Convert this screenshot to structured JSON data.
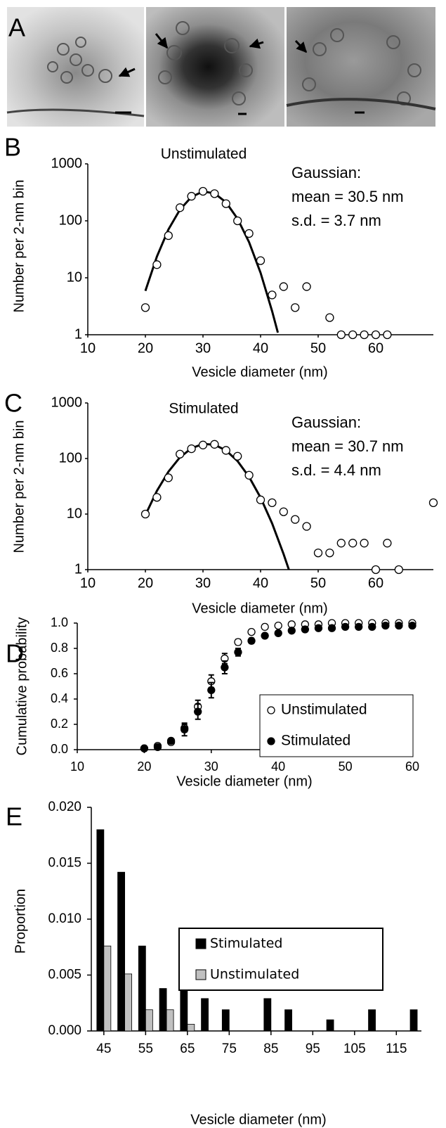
{
  "panels": [
    "A",
    "B",
    "C",
    "D",
    "E"
  ],
  "chart_data": [
    {
      "type": "scatter",
      "title": "Unstimulated",
      "annotations": [
        "Gaussian:",
        "mean = 30.5 nm",
        "s.d. = 3.7 nm"
      ],
      "x_label": "Vesicle diameter (nm)",
      "y_label": "Number per 2-nm bin",
      "yscale": "log",
      "xlim": [
        10,
        70
      ],
      "ylim": [
        1,
        1000
      ],
      "xticks": [
        10,
        20,
        30,
        40,
        50,
        60
      ],
      "yticks": [
        1,
        10,
        100,
        1000
      ],
      "series": [
        {
          "marker": "open-circle",
          "color": "#000000",
          "x": [
            20,
            22,
            24,
            26,
            28,
            30,
            32,
            34,
            36,
            38,
            40,
            42,
            44,
            46,
            48,
            52,
            54,
            56,
            58,
            60,
            62
          ],
          "values": [
            3,
            17,
            55,
            170,
            270,
            330,
            300,
            200,
            100,
            60,
            20,
            5,
            7,
            3,
            7,
            2,
            1,
            1,
            1,
            1,
            1
          ]
        },
        {
          "marker": "line",
          "color": "#000000",
          "x": [
            20,
            22,
            24,
            26,
            28,
            30,
            32,
            34,
            36,
            38,
            40,
            42,
            43
          ],
          "values": [
            5.9,
            23.6,
            70.5,
            157,
            263,
            327,
            304,
            211,
            109,
            42.3,
            12.2,
            2.6,
            1.09
          ]
        }
      ]
    },
    {
      "type": "scatter",
      "title": "Stimulated",
      "annotations": [
        "Gaussian:",
        "mean = 30.7 nm",
        "s.d. = 4.4 nm"
      ],
      "x_label": "Vesicle diameter (nm)",
      "y_label": "Number per 2-nm bin",
      "yscale": "log",
      "xlim": [
        10,
        70
      ],
      "ylim": [
        1,
        1000
      ],
      "xticks": [
        10,
        20,
        30,
        40,
        50,
        60
      ],
      "yticks": [
        1,
        10,
        100,
        1000
      ],
      "series": [
        {
          "marker": "open-circle",
          "color": "#000000",
          "x": [
            20,
            22,
            24,
            26,
            28,
            30,
            32,
            34,
            36,
            38,
            40,
            42,
            44,
            46,
            48,
            50,
            52,
            54,
            56,
            58,
            60,
            62,
            64,
            70
          ],
          "values": [
            10,
            20,
            45,
            120,
            150,
            175,
            180,
            140,
            110,
            50,
            18,
            16,
            11,
            8,
            6,
            2,
            2,
            3,
            3,
            3,
            1,
            3,
            1,
            16
          ]
        },
        {
          "marker": "line",
          "color": "#000000",
          "x": [
            20,
            22,
            24,
            26,
            28,
            30,
            32,
            34,
            36,
            38,
            40,
            42,
            44,
            45
          ],
          "values": [
            9.6,
            26.2,
            58,
            105,
            153,
            183,
            177,
            140,
            90,
            46.8,
            19.8,
            6.8,
            1.9,
            0.94
          ]
        }
      ]
    },
    {
      "type": "scatter",
      "x_label": "Vesicle diameter (nm)",
      "y_label": "Cumulative probability",
      "xlim": [
        10,
        60
      ],
      "ylim": [
        0,
        1
      ],
      "xticks": [
        10,
        20,
        30,
        40,
        50,
        60
      ],
      "yticks": [
        {
          "value": 0,
          "label": "0.0"
        },
        {
          "value": 0.2,
          "label": "0.2"
        },
        {
          "value": 0.4,
          "label": "0.4"
        },
        {
          "value": 0.6,
          "label": "0.6"
        },
        {
          "value": 0.8,
          "label": "0.8"
        },
        {
          "value": 1,
          "label": "1.0"
        }
      ],
      "legend": "right",
      "series": [
        {
          "name": "Unstimulated",
          "marker": "open-circle",
          "color": "#000000",
          "x": [
            20,
            22,
            24,
            26,
            28,
            30,
            32,
            34,
            36,
            38,
            40,
            42,
            44,
            46,
            48,
            50,
            52,
            54,
            56,
            58,
            60
          ],
          "values": [
            0.01,
            0.03,
            0.06,
            0.17,
            0.34,
            0.54,
            0.72,
            0.85,
            0.93,
            0.97,
            0.98,
            0.99,
            0.99,
            0.99,
            1,
            1,
            1,
            1,
            1,
            1,
            1
          ],
          "errors": [
            0.005,
            0.01,
            0.01,
            0.03,
            0.05,
            0.05,
            0.04,
            0.02,
            0.01,
            0.005,
            0.005,
            0.005,
            0.005,
            0.005,
            0.003,
            0.003,
            0.003,
            0.003,
            0.003,
            0.003,
            0.003
          ]
        },
        {
          "name": "Stimulated",
          "marker": "filled-circle",
          "color": "#000000",
          "x": [
            20,
            22,
            24,
            26,
            28,
            30,
            32,
            34,
            36,
            38,
            40,
            42,
            44,
            46,
            48,
            50,
            52,
            54,
            56,
            58,
            60
          ],
          "values": [
            0.01,
            0.02,
            0.07,
            0.16,
            0.3,
            0.47,
            0.65,
            0.77,
            0.86,
            0.9,
            0.92,
            0.94,
            0.95,
            0.96,
            0.96,
            0.97,
            0.97,
            0.97,
            0.98,
            0.98,
            0.98
          ],
          "errors": [
            0.005,
            0.01,
            0.015,
            0.05,
            0.06,
            0.06,
            0.05,
            0.03,
            0.02,
            0.015,
            0.015,
            0.01,
            0.01,
            0.01,
            0.01,
            0.01,
            0.01,
            0.01,
            0.01,
            0.01,
            0.01
          ]
        }
      ]
    },
    {
      "type": "bar",
      "x_label": "Vesicle diameter (nm)",
      "y_label": "Proportion",
      "xlim": [
        42,
        121
      ],
      "ylim": [
        0,
        0.02
      ],
      "xticks": [
        45,
        55,
        65,
        75,
        85,
        95,
        105,
        115
      ],
      "yticks": [
        {
          "value": 0,
          "label": "0.000"
        },
        {
          "value": 0.005,
          "label": "0.005"
        },
        {
          "value": 0.01,
          "label": "0.010"
        },
        {
          "value": 0.015,
          "label": "0.015"
        },
        {
          "value": 0.02,
          "label": "0.020"
        }
      ],
      "legend": "center",
      "x": [
        45,
        50,
        55,
        60,
        65,
        70,
        75,
        85,
        90,
        100,
        110,
        120
      ],
      "series": [
        {
          "name": "Stimulated",
          "color": "#000000",
          "values": [
            0.018,
            0.0142,
            0.0076,
            0.0038,
            0.0048,
            0.0029,
            0.0019,
            0.0029,
            0.0019,
            0.001,
            0.0019,
            0.0019
          ]
        },
        {
          "name": "Unstimulated",
          "color": "#c0c0c0",
          "values": [
            0.0076,
            0.0051,
            0.0019,
            0.0019,
            0.0006,
            null,
            null,
            null,
            null,
            null,
            null,
            null
          ]
        }
      ]
    }
  ]
}
